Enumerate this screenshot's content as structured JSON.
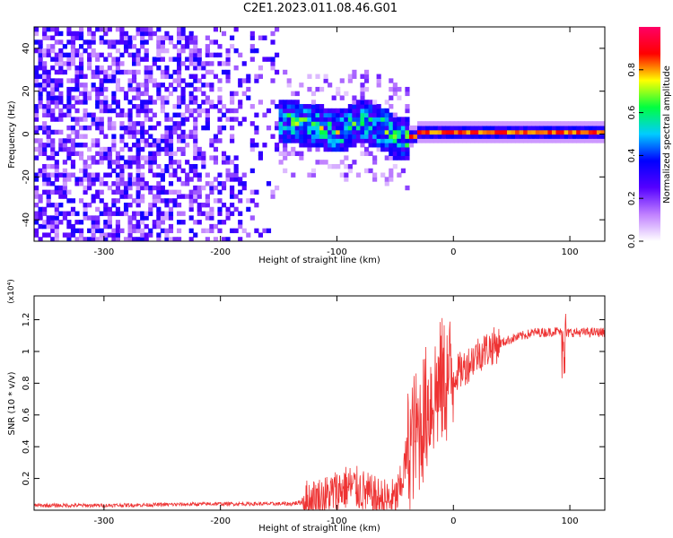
{
  "title": "C2E1.2023.011.08.46.G01",
  "chart_data": [
    {
      "type": "heatmap",
      "title": "",
      "xlabel": "Height of straight line (km)",
      "ylabel": "Frequency (Hz)",
      "xlim": [
        -360,
        130
      ],
      "ylim": [
        -50,
        50
      ],
      "x_ticks": [
        -300,
        -200,
        -100,
        0,
        100
      ],
      "y_ticks": [
        -40,
        -20,
        0,
        20,
        40
      ],
      "colorbar": {
        "label": "Normalized spectral amplitude",
        "range": [
          0,
          1
        ],
        "ticks": [
          0.0,
          0.2,
          0.4,
          0.6,
          0.8
        ],
        "colors": [
          "#ffffff",
          "#c080ff",
          "#5500ff",
          "#0000ff",
          "#00ccff",
          "#00ff40",
          "#ffff00",
          "#ff0000",
          "#ff0066"
        ]
      },
      "ridge": [
        {
          "x": -150,
          "f": 5
        },
        {
          "x": -120,
          "f": 3
        },
        {
          "x": -100,
          "f": 0
        },
        {
          "x": -80,
          "f": 5
        },
        {
          "x": -60,
          "f": 1
        },
        {
          "x": -50,
          "f": -3
        },
        {
          "x": -40,
          "f": -3
        },
        {
          "x": -30,
          "f": 0
        },
        {
          "x": 0,
          "f": 0
        },
        {
          "x": 130,
          "f": 0
        }
      ]
    },
    {
      "type": "line",
      "title": "",
      "xlabel": "Height of straight line (km)",
      "ylabel": "SNR (10 * v/v)",
      "y_scale_note": "(x10⁴)",
      "xlim": [
        -360,
        130
      ],
      "ylim": [
        0,
        1.35
      ],
      "x_ticks": [
        -300,
        -200,
        -100,
        0,
        100
      ],
      "y_ticks": [
        0.2,
        0.4,
        0.6,
        0.8,
        1.0,
        1.2
      ],
      "color": "#ee3333",
      "series": [
        {
          "x": [
            -360,
            -300,
            -200,
            -140,
            -120,
            -110,
            -100,
            -90,
            -80,
            -70,
            -60,
            -50,
            -45,
            -40,
            -35,
            -30,
            -25,
            -20,
            -15,
            -10,
            0,
            10,
            20,
            30,
            40,
            50,
            60,
            70,
            80,
            90,
            95,
            100,
            110,
            120,
            130
          ],
          "values": [
            0.03,
            0.03,
            0.04,
            0.04,
            0.06,
            0.08,
            0.12,
            0.15,
            0.13,
            0.08,
            0.06,
            0.06,
            0.15,
            0.35,
            0.45,
            0.5,
            0.6,
            0.7,
            0.75,
            0.8,
            0.85,
            0.9,
            0.98,
            1.02,
            1.05,
            1.08,
            1.1,
            1.12,
            1.12,
            1.13,
            1.1,
            1.12,
            1.12,
            1.12,
            1.12
          ]
        }
      ]
    }
  ]
}
